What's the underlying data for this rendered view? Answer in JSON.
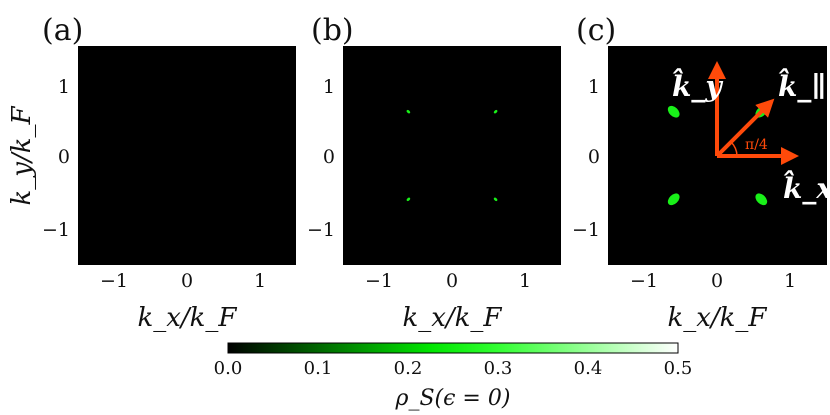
{
  "chart_data": [
    {
      "type": "heatmap",
      "panel_label": "(a)",
      "xlabel": "k_x/k_F",
      "ylabel": "k_y/k_F",
      "xlim": [
        -1.5,
        1.5
      ],
      "ylim": [
        -1.5,
        1.5
      ],
      "xticks": [
        "−1",
        "0",
        "1"
      ],
      "yticks": [
        "−1",
        "0",
        "1"
      ],
      "spots": []
    },
    {
      "type": "heatmap",
      "panel_label": "(b)",
      "xlabel": "k_x/k_F",
      "ylabel": "",
      "xlim": [
        -1.5,
        1.5
      ],
      "ylim": [
        -1.5,
        1.5
      ],
      "xticks": [
        "−1",
        "0",
        "1"
      ],
      "yticks": [
        "−1",
        "0",
        "1"
      ],
      "spots": [
        {
          "kx": -0.6,
          "ky": 0.6,
          "value": 0.2,
          "size": 0.03
        },
        {
          "kx": 0.6,
          "ky": 0.6,
          "value": 0.2,
          "size": 0.03
        },
        {
          "kx": -0.6,
          "ky": -0.6,
          "value": 0.2,
          "size": 0.03
        },
        {
          "kx": 0.6,
          "ky": -0.6,
          "value": 0.2,
          "size": 0.03
        }
      ]
    },
    {
      "type": "heatmap",
      "panel_label": "(c)",
      "xlabel": "k_x/k_F",
      "ylabel": "",
      "xlim": [
        -1.5,
        1.5
      ],
      "ylim": [
        -1.5,
        1.5
      ],
      "xticks": [
        "−1",
        "0",
        "1"
      ],
      "yticks": [
        "−1",
        "0",
        "1"
      ],
      "spots": [
        {
          "kx": -0.6,
          "ky": 0.6,
          "value": 0.25,
          "size": 0.1
        },
        {
          "kx": 0.6,
          "ky": 0.6,
          "value": 0.25,
          "size": 0.1
        },
        {
          "kx": -0.6,
          "ky": -0.6,
          "value": 0.25,
          "size": 0.1
        },
        {
          "kx": 0.6,
          "ky": -0.6,
          "value": 0.25,
          "size": 0.1
        }
      ],
      "vectors": [
        {
          "label": "k̂_x",
          "angle_deg": 0
        },
        {
          "label": "k̂_y",
          "angle_deg": 90
        },
        {
          "label": "k̂_∥",
          "angle_deg": 45
        }
      ],
      "angle_annotation": "π/4"
    }
  ],
  "colorbar": {
    "label": "ρ_S(ϵ = 0)",
    "range": [
      0.0,
      0.5
    ],
    "ticks": [
      "0.0",
      "0.1",
      "0.2",
      "0.3",
      "0.4",
      "0.5"
    ],
    "colors": [
      "#000000",
      "#00ff00",
      "#ffffff"
    ]
  },
  "colors": {
    "background": "#000000",
    "spot": "#19f019",
    "arrow": "#ff4a0a",
    "vector_text": "#ffffff"
  }
}
